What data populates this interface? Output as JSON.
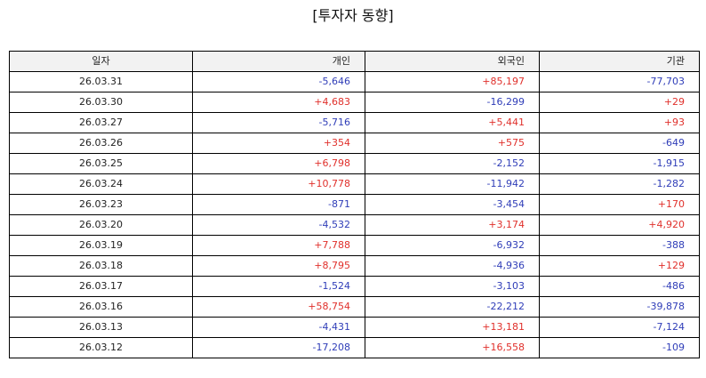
{
  "title": "[투자자 동향]",
  "colors": {
    "positive": "#e0302b",
    "negative": "#2f3db8",
    "header_bg": "#f2f2f2",
    "border": "#000000"
  },
  "table": {
    "headers": [
      "일자",
      "개인",
      "외국인",
      "기관"
    ],
    "rows": [
      {
        "date": "26.03.31",
        "individual": "-5,646",
        "foreign": "+85,197",
        "institution": "-77,703"
      },
      {
        "date": "26.03.30",
        "individual": "+4,683",
        "foreign": "-16,299",
        "institution": "+29"
      },
      {
        "date": "26.03.27",
        "individual": "-5,716",
        "foreign": "+5,441",
        "institution": "+93"
      },
      {
        "date": "26.03.26",
        "individual": "+354",
        "foreign": "+575",
        "institution": "-649"
      },
      {
        "date": "26.03.25",
        "individual": "+6,798",
        "foreign": "-2,152",
        "institution": "-1,915"
      },
      {
        "date": "26.03.24",
        "individual": "+10,778",
        "foreign": "-11,942",
        "institution": "-1,282"
      },
      {
        "date": "26.03.23",
        "individual": "-871",
        "foreign": "-3,454",
        "institution": "+170"
      },
      {
        "date": "26.03.20",
        "individual": "-4,532",
        "foreign": "+3,174",
        "institution": "+4,920"
      },
      {
        "date": "26.03.19",
        "individual": "+7,788",
        "foreign": "-6,932",
        "institution": "-388"
      },
      {
        "date": "26.03.18",
        "individual": "+8,795",
        "foreign": "-4,936",
        "institution": "+129"
      },
      {
        "date": "26.03.17",
        "individual": "-1,524",
        "foreign": "-3,103",
        "institution": "-486"
      },
      {
        "date": "26.03.16",
        "individual": "+58,754",
        "foreign": "-22,212",
        "institution": "-39,878"
      },
      {
        "date": "26.03.13",
        "individual": "-4,431",
        "foreign": "+13,181",
        "institution": "-7,124"
      },
      {
        "date": "26.03.12",
        "individual": "-17,208",
        "foreign": "+16,558",
        "institution": "-109"
      }
    ]
  }
}
